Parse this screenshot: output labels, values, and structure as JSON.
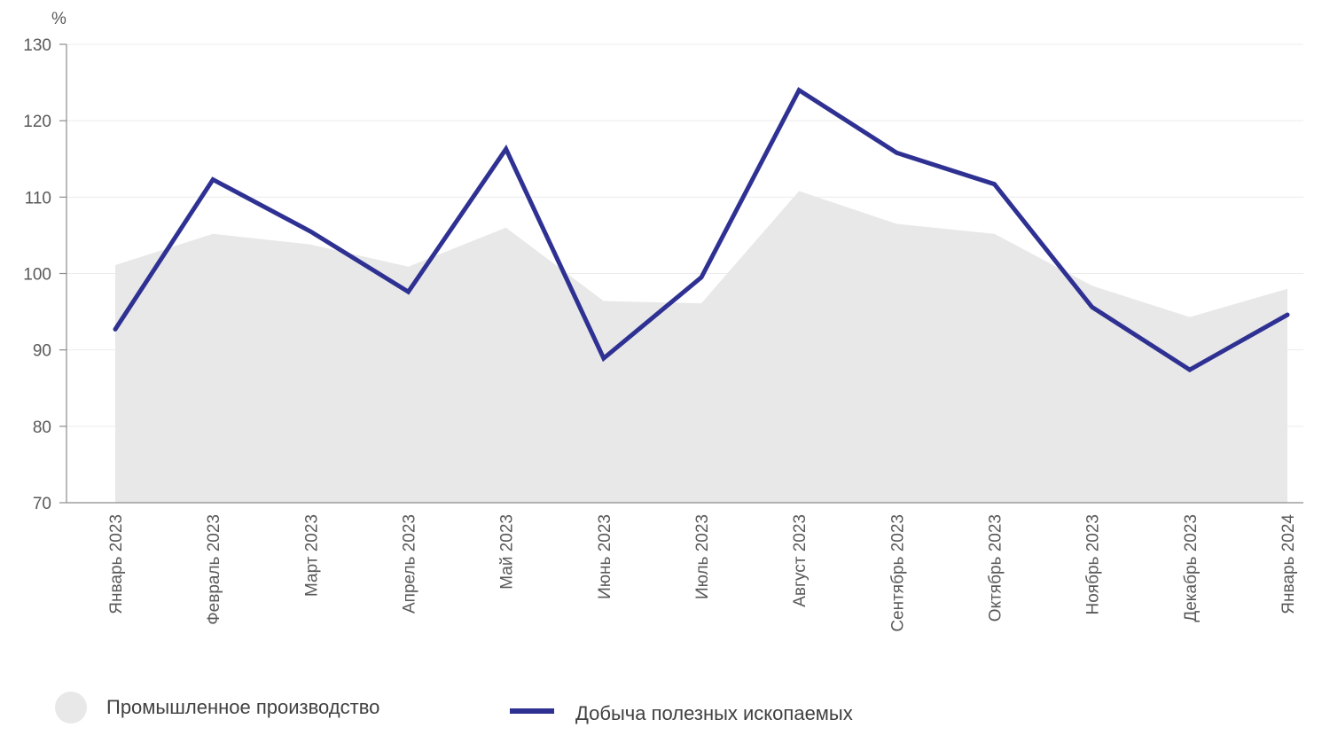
{
  "chart_data": {
    "type": "line",
    "y_unit": "%",
    "ylim": [
      70,
      130
    ],
    "yticks": [
      70,
      80,
      90,
      100,
      110,
      120,
      130
    ],
    "grid": true,
    "legend_position": "bottom",
    "categories": [
      "Январь 2023",
      "Февраль 2023",
      "Март 2023",
      "Апрель 2023",
      "Май 2023",
      "Июнь 2023",
      "Июль 2023",
      "Август 2023",
      "Сентябрь 2023",
      "Октябрь 2023",
      "Ноябрь 2023",
      "Декабрь 2023",
      "Январь 2024"
    ],
    "series": [
      {
        "name": "Промышленное производство",
        "kind": "area",
        "color": "#e8e8e8",
        "values": [
          101.1,
          105.2,
          103.8,
          100.9,
          106.0,
          96.4,
          96.1,
          110.8,
          106.5,
          105.2,
          98.4,
          94.3,
          98.0
        ]
      },
      {
        "name": "Добыча полезных ископаемых",
        "kind": "line",
        "color": "#2e3192",
        "values": [
          92.7,
          112.3,
          105.5,
          97.6,
          116.3,
          88.9,
          99.5,
          124.0,
          115.8,
          111.7,
          95.6,
          87.4,
          94.6
        ]
      }
    ]
  }
}
